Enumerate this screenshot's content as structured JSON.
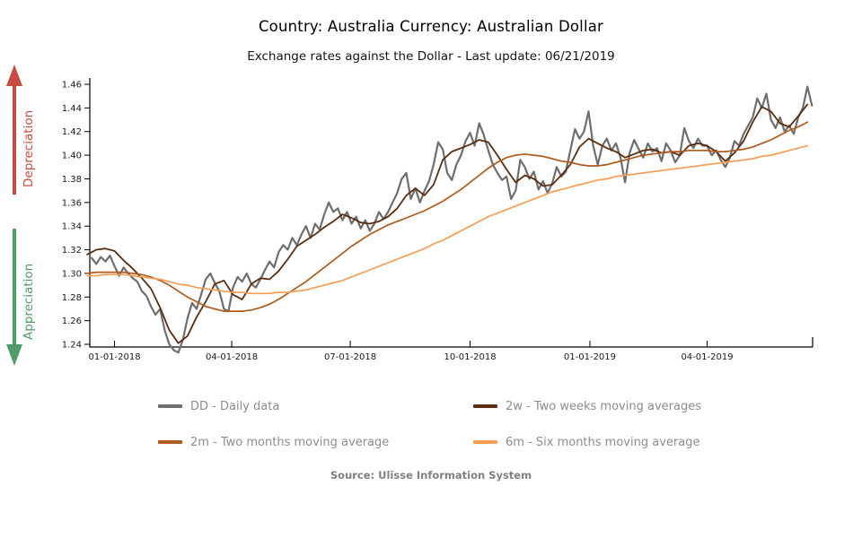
{
  "header": {
    "title": "Country: Australia Currency: Australian Dollar",
    "subtitle": "Exchange rates against the Dollar - Last update: 06/21/2019"
  },
  "side_annotations": {
    "depreciation": {
      "label": "Depreciation",
      "color": "#c84a42",
      "direction": "up"
    },
    "appreciation": {
      "label": "Appreciation",
      "color": "#4f9b6a",
      "direction": "down"
    }
  },
  "source_line": "Source: Ulisse Information System",
  "colors": {
    "axis": "#000000",
    "tick_label": "#1a1a1a",
    "legend_text": "#8c8c8c",
    "source_text": "#808080"
  },
  "chart_data": {
    "type": "line",
    "title": "Country: Australia Currency: Australian Dollar",
    "subtitle": "Exchange rates against the Dollar - Last update: 06/21/2019",
    "grid": false,
    "legend_position": "bottom",
    "x_axis": {
      "domain_days": [
        -19,
        536
      ],
      "ticks": [
        {
          "day": 0,
          "label": "01-01-2018"
        },
        {
          "day": 90,
          "label": "04-01-2018"
        },
        {
          "day": 181,
          "label": "07-01-2018"
        },
        {
          "day": 273,
          "label": "10-01-2018"
        },
        {
          "day": 365,
          "label": "01-01-2019"
        },
        {
          "day": 455,
          "label": "04-01-2019"
        }
      ]
    },
    "y_axis": {
      "min": 1.24,
      "max": 1.46,
      "ticks": [
        1.24,
        1.26,
        1.28,
        1.3,
        1.32,
        1.34,
        1.36,
        1.38,
        1.4,
        1.42,
        1.44,
        1.46
      ]
    },
    "series": [
      {
        "id": "dd",
        "name": "DD - Daily data",
        "color": "#6e6e6e",
        "line_width": 2.2,
        "start_day": -17.5,
        "step_days": 3.5,
        "values": [
          1.313,
          1.308,
          1.314,
          1.31,
          1.315,
          1.306,
          1.298,
          1.305,
          1.3,
          1.296,
          1.293,
          1.285,
          1.281,
          1.272,
          1.265,
          1.27,
          1.252,
          1.24,
          1.235,
          1.233,
          1.244,
          1.262,
          1.275,
          1.27,
          1.282,
          1.295,
          1.3,
          1.292,
          1.285,
          1.27,
          1.268,
          1.288,
          1.297,
          1.293,
          1.3,
          1.291,
          1.288,
          1.295,
          1.303,
          1.31,
          1.305,
          1.318,
          1.324,
          1.32,
          1.33,
          1.324,
          1.333,
          1.34,
          1.33,
          1.342,
          1.337,
          1.35,
          1.36,
          1.352,
          1.355,
          1.345,
          1.352,
          1.342,
          1.348,
          1.338,
          1.345,
          1.336,
          1.342,
          1.352,
          1.346,
          1.352,
          1.36,
          1.368,
          1.38,
          1.385,
          1.363,
          1.372,
          1.36,
          1.37,
          1.378,
          1.392,
          1.411,
          1.405,
          1.385,
          1.379,
          1.392,
          1.4,
          1.412,
          1.419,
          1.408,
          1.427,
          1.417,
          1.404,
          1.392,
          1.385,
          1.379,
          1.382,
          1.363,
          1.37,
          1.396,
          1.39,
          1.38,
          1.386,
          1.371,
          1.378,
          1.368,
          1.376,
          1.39,
          1.382,
          1.386,
          1.404,
          1.422,
          1.414,
          1.42,
          1.437,
          1.408,
          1.392,
          1.408,
          1.414,
          1.404,
          1.41,
          1.398,
          1.377,
          1.402,
          1.413,
          1.405,
          1.398,
          1.41,
          1.403,
          1.406,
          1.395,
          1.41,
          1.404,
          1.394,
          1.4,
          1.423,
          1.412,
          1.406,
          1.414,
          1.408,
          1.408,
          1.4,
          1.404,
          1.396,
          1.39,
          1.398,
          1.412,
          1.408,
          1.418,
          1.425,
          1.432,
          1.448,
          1.44,
          1.452,
          1.43,
          1.423,
          1.432,
          1.42,
          1.425,
          1.418,
          1.432,
          1.44,
          1.458,
          1.442
        ]
      },
      {
        "id": "2w",
        "name": "2w - Two weeks moving averages",
        "color": "#5c2d0e",
        "line_width": 1.8,
        "start_day": -21,
        "step_days": 7,
        "values": [
          1.316,
          1.32,
          1.321,
          1.319,
          1.311,
          1.304,
          1.296,
          1.287,
          1.271,
          1.252,
          1.241,
          1.247,
          1.263,
          1.276,
          1.291,
          1.294,
          1.282,
          1.278,
          1.291,
          1.296,
          1.295,
          1.302,
          1.312,
          1.323,
          1.328,
          1.333,
          1.339,
          1.344,
          1.35,
          1.347,
          1.343,
          1.342,
          1.344,
          1.348,
          1.355,
          1.366,
          1.372,
          1.366,
          1.375,
          1.396,
          1.403,
          1.406,
          1.409,
          1.413,
          1.411,
          1.4,
          1.388,
          1.377,
          1.383,
          1.38,
          1.374,
          1.375,
          1.383,
          1.392,
          1.407,
          1.414,
          1.41,
          1.406,
          1.403,
          1.398,
          1.401,
          1.404,
          1.405,
          1.402,
          1.403,
          1.4,
          1.408,
          1.41,
          1.408,
          1.403,
          1.395,
          1.402,
          1.412,
          1.428,
          1.441,
          1.437,
          1.427,
          1.424,
          1.433,
          1.443
        ]
      },
      {
        "id": "2m",
        "name": "2m - Two months moving average",
        "color": "#af5b1c",
        "line_width": 1.7,
        "start_day": -21,
        "step_days": 7,
        "values": [
          1.3,
          1.301,
          1.301,
          1.301,
          1.301,
          1.3,
          1.299,
          1.297,
          1.294,
          1.29,
          1.285,
          1.28,
          1.276,
          1.272,
          1.27,
          1.268,
          1.268,
          1.268,
          1.269,
          1.271,
          1.274,
          1.278,
          1.283,
          1.288,
          1.293,
          1.299,
          1.305,
          1.311,
          1.317,
          1.323,
          1.328,
          1.333,
          1.337,
          1.341,
          1.344,
          1.347,
          1.35,
          1.353,
          1.357,
          1.361,
          1.366,
          1.371,
          1.377,
          1.383,
          1.389,
          1.394,
          1.398,
          1.4,
          1.401,
          1.4,
          1.399,
          1.397,
          1.395,
          1.394,
          1.392,
          1.391,
          1.391,
          1.392,
          1.394,
          1.396,
          1.398,
          1.4,
          1.401,
          1.402,
          1.403,
          1.403,
          1.404,
          1.404,
          1.404,
          1.403,
          1.403,
          1.404,
          1.405,
          1.407,
          1.41,
          1.413,
          1.417,
          1.421,
          1.424,
          1.428
        ]
      },
      {
        "id": "6m",
        "name": "6m - Six months moving average",
        "color": "#f79e54",
        "line_width": 1.7,
        "start_day": -21,
        "step_days": 7,
        "values": [
          1.298,
          1.298,
          1.299,
          1.299,
          1.299,
          1.298,
          1.297,
          1.296,
          1.295,
          1.293,
          1.291,
          1.29,
          1.288,
          1.287,
          1.286,
          1.285,
          1.284,
          1.284,
          1.283,
          1.283,
          1.283,
          1.284,
          1.284,
          1.285,
          1.286,
          1.288,
          1.29,
          1.292,
          1.294,
          1.297,
          1.3,
          1.303,
          1.306,
          1.309,
          1.312,
          1.315,
          1.318,
          1.321,
          1.325,
          1.328,
          1.332,
          1.336,
          1.34,
          1.344,
          1.348,
          1.351,
          1.354,
          1.357,
          1.36,
          1.363,
          1.366,
          1.369,
          1.371,
          1.373,
          1.375,
          1.377,
          1.379,
          1.38,
          1.382,
          1.383,
          1.384,
          1.385,
          1.386,
          1.387,
          1.388,
          1.389,
          1.39,
          1.391,
          1.392,
          1.393,
          1.394,
          1.395,
          1.396,
          1.397,
          1.399,
          1.4,
          1.402,
          1.404,
          1.406,
          1.408
        ]
      }
    ]
  }
}
